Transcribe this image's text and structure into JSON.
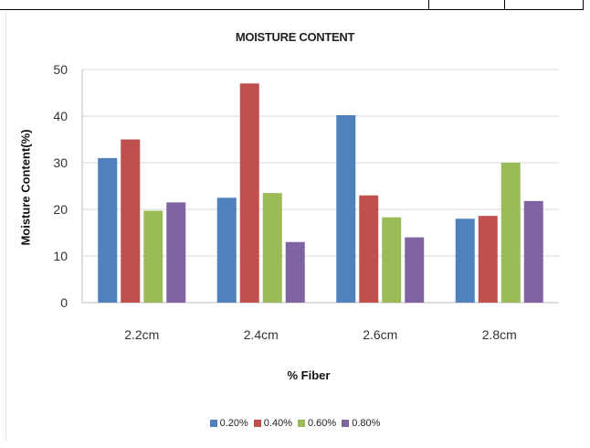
{
  "chart_data": {
    "type": "bar",
    "title": "MOISTURE CONTENT",
    "xlabel": "% Fiber",
    "ylabel": "Moisture Content(%)",
    "ylim": [
      0,
      50
    ],
    "yticks": [
      0,
      10,
      20,
      30,
      40,
      50
    ],
    "grid": true,
    "legend_position": "bottom",
    "categories": [
      "2.2cm",
      "2.4cm",
      "2.6cm",
      "2.8cm"
    ],
    "series": [
      {
        "name": "0.20%",
        "color": "#4f81bd",
        "values": [
          31,
          22.5,
          40.2,
          18
        ]
      },
      {
        "name": "0.40%",
        "color": "#c0504d",
        "values": [
          35,
          47,
          23,
          18.6
        ]
      },
      {
        "name": "0.60%",
        "color": "#9bbb59",
        "values": [
          19.7,
          23.5,
          18.3,
          30
        ]
      },
      {
        "name": "0.80%",
        "color": "#8064a2",
        "values": [
          21.5,
          13,
          14,
          21.8
        ]
      }
    ]
  }
}
